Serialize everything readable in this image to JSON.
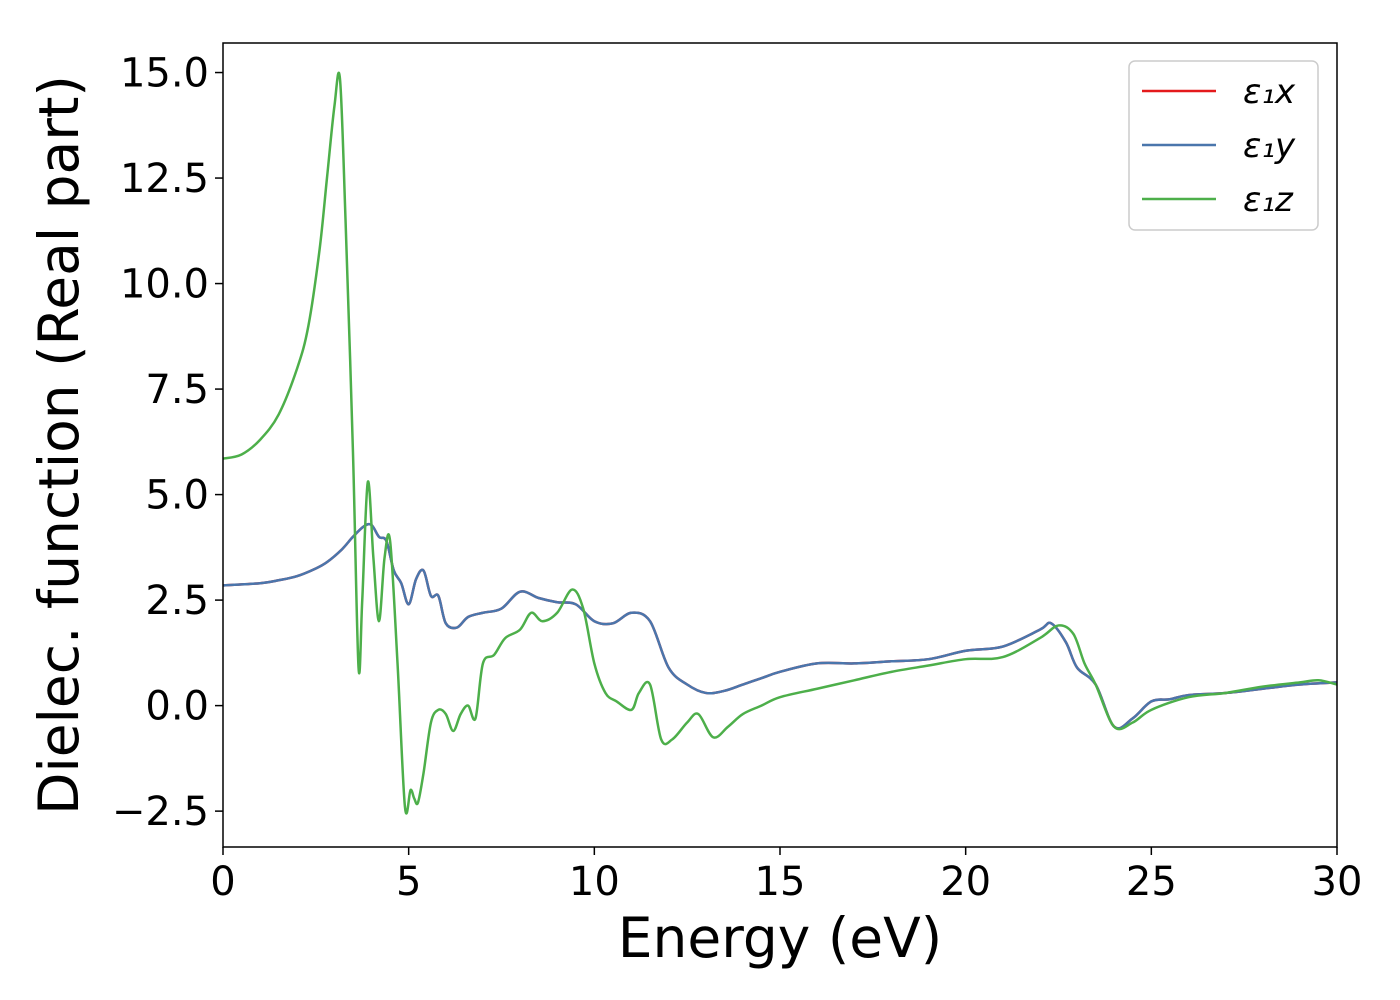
{
  "chart_data": {
    "type": "line",
    "xlabel": "Energy (eV)",
    "ylabel": "Dielec. function (Real part)",
    "xlim": [
      0,
      30
    ],
    "ylim": [
      -3.35,
      15.7
    ],
    "xticks": [
      0,
      5,
      10,
      15,
      20,
      25,
      30
    ],
    "xtick_labels": [
      "0",
      "5",
      "10",
      "15",
      "20",
      "25",
      "30"
    ],
    "yticks": [
      -2.5,
      0.0,
      2.5,
      5.0,
      7.5,
      10.0,
      12.5,
      15.0
    ],
    "ytick_labels": [
      "−2.5",
      "0.0",
      "2.5",
      "5.0",
      "7.5",
      "10.0",
      "12.5",
      "15.0"
    ],
    "grid": false,
    "legend_position": "top-right",
    "series": [
      {
        "name": "ε₁x",
        "color": "#e41a1c",
        "x": [
          0,
          1,
          1.5,
          2,
          2.5,
          2.8,
          3.2,
          3.5,
          3.8,
          4.0,
          4.2,
          4.4,
          4.6,
          4.8,
          5.0,
          5.2,
          5.4,
          5.6,
          5.8,
          6.0,
          6.3,
          6.6,
          7.0,
          7.5,
          8.0,
          8.5,
          9.0,
          9.5,
          10.0,
          10.5,
          11.0,
          11.5,
          12.0,
          12.5,
          13.0,
          13.5,
          14.0,
          14.5,
          15.0,
          16.0,
          17.0,
          18.0,
          19.0,
          20.0,
          21.0,
          22.0,
          22.3,
          22.7,
          23.0,
          23.5,
          24.0,
          24.5,
          25.0,
          25.5,
          26.0,
          27.0,
          28.0,
          29.0,
          30.0
        ],
        "y": [
          2.85,
          2.9,
          2.97,
          3.07,
          3.25,
          3.4,
          3.7,
          4.0,
          4.25,
          4.28,
          4.0,
          3.9,
          3.2,
          2.9,
          2.4,
          3.0,
          3.2,
          2.6,
          2.6,
          1.95,
          1.85,
          2.1,
          2.2,
          2.3,
          2.7,
          2.55,
          2.45,
          2.4,
          2.0,
          1.95,
          2.2,
          2.0,
          0.9,
          0.5,
          0.3,
          0.35,
          0.5,
          0.65,
          0.8,
          1.0,
          1.0,
          1.05,
          1.1,
          1.3,
          1.4,
          1.8,
          1.95,
          1.5,
          0.9,
          0.5,
          -0.5,
          -0.3,
          0.1,
          0.15,
          0.25,
          0.3,
          0.4,
          0.5,
          0.55
        ]
      },
      {
        "name": "ε₁y",
        "color": "#4a76ac",
        "x": [
          0,
          1,
          1.5,
          2,
          2.5,
          2.8,
          3.2,
          3.5,
          3.8,
          4.0,
          4.2,
          4.4,
          4.6,
          4.8,
          5.0,
          5.2,
          5.4,
          5.6,
          5.8,
          6.0,
          6.3,
          6.6,
          7.0,
          7.5,
          8.0,
          8.5,
          9.0,
          9.5,
          10.0,
          10.5,
          11.0,
          11.5,
          12.0,
          12.5,
          13.0,
          13.5,
          14.0,
          14.5,
          15.0,
          16.0,
          17.0,
          18.0,
          19.0,
          20.0,
          21.0,
          22.0,
          22.3,
          22.7,
          23.0,
          23.5,
          24.0,
          24.5,
          25.0,
          25.5,
          26.0,
          27.0,
          28.0,
          29.0,
          30.0
        ],
        "y": [
          2.85,
          2.9,
          2.97,
          3.07,
          3.25,
          3.4,
          3.7,
          4.0,
          4.25,
          4.28,
          4.0,
          3.9,
          3.2,
          2.9,
          2.4,
          3.0,
          3.2,
          2.6,
          2.6,
          1.95,
          1.85,
          2.1,
          2.2,
          2.3,
          2.7,
          2.55,
          2.45,
          2.4,
          2.0,
          1.95,
          2.2,
          2.0,
          0.9,
          0.5,
          0.3,
          0.35,
          0.5,
          0.65,
          0.8,
          1.0,
          1.0,
          1.05,
          1.1,
          1.3,
          1.4,
          1.8,
          1.95,
          1.5,
          0.9,
          0.5,
          -0.5,
          -0.3,
          0.1,
          0.15,
          0.25,
          0.3,
          0.4,
          0.5,
          0.55
        ]
      },
      {
        "name": "ε₁z",
        "color": "#4daf4a",
        "x": [
          0,
          0.5,
          1,
          1.5,
          2,
          2.3,
          2.6,
          2.8,
          3.0,
          3.15,
          3.3,
          3.5,
          3.65,
          3.75,
          3.9,
          4.05,
          4.2,
          4.35,
          4.5,
          4.7,
          4.9,
          5.05,
          5.15,
          5.25,
          5.4,
          5.6,
          5.8,
          6.0,
          6.2,
          6.4,
          6.6,
          6.8,
          7.0,
          7.3,
          7.6,
          8.0,
          8.3,
          8.6,
          9.0,
          9.4,
          9.7,
          10.0,
          10.3,
          10.6,
          11.0,
          11.2,
          11.5,
          11.8,
          12.1,
          12.5,
          12.8,
          13.2,
          13.6,
          14.0,
          14.5,
          15.0,
          16.0,
          17.0,
          18.0,
          19.0,
          20.0,
          21.0,
          22.0,
          22.5,
          22.9,
          23.2,
          23.5,
          24.0,
          24.5,
          25.0,
          26.0,
          27.0,
          28.0,
          29.0,
          29.5,
          30.0
        ],
        "y": [
          5.85,
          5.95,
          6.3,
          6.9,
          8.0,
          9.0,
          10.8,
          12.5,
          14.2,
          14.85,
          11.5,
          6.0,
          0.9,
          2.5,
          5.3,
          3.5,
          2.0,
          3.5,
          3.9,
          1.0,
          -2.4,
          -2.0,
          -2.2,
          -2.3,
          -1.6,
          -0.4,
          -0.1,
          -0.2,
          -0.6,
          -0.2,
          0.0,
          -0.3,
          1.0,
          1.2,
          1.6,
          1.8,
          2.2,
          2.0,
          2.2,
          2.75,
          2.3,
          1.0,
          0.3,
          0.1,
          -0.1,
          0.3,
          0.5,
          -0.8,
          -0.8,
          -0.4,
          -0.2,
          -0.75,
          -0.5,
          -0.2,
          0.0,
          0.2,
          0.4,
          0.6,
          0.8,
          0.95,
          1.1,
          1.15,
          1.6,
          1.9,
          1.7,
          1.0,
          0.5,
          -0.5,
          -0.4,
          -0.1,
          0.2,
          0.3,
          0.45,
          0.55,
          0.6,
          0.5
        ]
      }
    ]
  }
}
